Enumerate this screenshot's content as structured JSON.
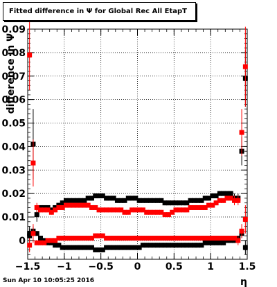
{
  "title": "Fitted difference in  Ψ  for Global Rec All EtapT",
  "footer": {
    "date": "Sun Apr 10 10:05:25 2016"
  },
  "chart_data": {
    "type": "scatter",
    "title": "Fitted difference in  Ψ  for Global Rec All EtapT",
    "xlabel": "η",
    "ylabel": "difference in Ψ",
    "xlim": [
      -1.5,
      1.5
    ],
    "ylim": [
      -0.008,
      0.09
    ],
    "xticks": [
      -1.5,
      -1,
      -0.5,
      0,
      0.5,
      1,
      1.5
    ],
    "xtick_labels": [
      "−1.5",
      "−1",
      "−0.5",
      "0",
      "0.5",
      "1",
      "1.5"
    ],
    "yticks": [
      0,
      0.01,
      0.02,
      0.03,
      0.04,
      0.05,
      0.06,
      0.07,
      0.08,
      0.09
    ],
    "ytick_labels": [
      "0",
      "0.01",
      "0.02",
      "0.03",
      "0.04",
      "0.05",
      "0.06",
      "0.07",
      "0.08",
      "0.09"
    ],
    "grid": true,
    "legend": "none",
    "colors": {
      "series1": "#000000",
      "series2": "#ff0000"
    },
    "series": [
      {
        "color": "#000000",
        "x": [
          -1.475,
          -1.425,
          -1.375,
          -1.325,
          -1.275,
          -1.225,
          -1.175,
          -1.125,
          -1.075,
          -1.025,
          -0.975,
          -0.925,
          -0.875,
          -0.825,
          -0.775,
          -0.725,
          -0.675,
          -0.625,
          -0.575,
          -0.525,
          -0.475,
          -0.425,
          -0.375,
          -0.325,
          -0.275,
          -0.225,
          -0.175,
          -0.125,
          -0.075,
          -0.025,
          0.025,
          0.075,
          0.125,
          0.175,
          0.225,
          0.275,
          0.325,
          0.375,
          0.425,
          0.475,
          0.525,
          0.575,
          0.625,
          0.675,
          0.725,
          0.775,
          0.825,
          0.875,
          0.925,
          0.975,
          1.025,
          1.075,
          1.125,
          1.175,
          1.225,
          1.275,
          1.325,
          1.375,
          1.425,
          1.475
        ],
        "y": [
          0.002,
          0.041,
          0.011,
          0.014,
          0.014,
          0.014,
          0.013,
          0.014,
          0.015,
          0.016,
          0.017,
          0.017,
          0.017,
          0.017,
          0.017,
          0.017,
          0.018,
          0.018,
          0.019,
          0.019,
          0.019,
          0.018,
          0.018,
          0.018,
          0.017,
          0.017,
          0.017,
          0.018,
          0.018,
          0.018,
          0.017,
          0.017,
          0.017,
          0.017,
          0.017,
          0.017,
          0.017,
          0.016,
          0.016,
          0.016,
          0.016,
          0.016,
          0.016,
          0.016,
          0.017,
          0.017,
          0.017,
          0.017,
          0.018,
          0.018,
          0.019,
          0.019,
          0.02,
          0.02,
          0.02,
          0.02,
          0.018,
          0.018,
          0.038,
          0.069
        ],
        "err": [
          0.004,
          0.015,
          0.003,
          0.001,
          0.001,
          0.001,
          0.001,
          0.001,
          0.001,
          0.001,
          0.001,
          0.001,
          0.001,
          0.001,
          0.001,
          0.001,
          0.001,
          0.001,
          0.001,
          0.001,
          0.001,
          0.001,
          0.001,
          0.001,
          0.001,
          0.001,
          0.001,
          0.001,
          0.001,
          0.001,
          0.001,
          0.001,
          0.001,
          0.001,
          0.001,
          0.001,
          0.001,
          0.001,
          0.001,
          0.001,
          0.001,
          0.001,
          0.001,
          0.001,
          0.001,
          0.001,
          0.001,
          0.001,
          0.001,
          0.001,
          0.001,
          0.001,
          0.001,
          0.001,
          0.001,
          0.001,
          0.002,
          0.002,
          0.006,
          0.012
        ]
      },
      {
        "color": "#000000",
        "x": [
          -1.475,
          -1.425,
          -1.375,
          -1.325,
          -1.275,
          -1.225,
          -1.175,
          -1.125,
          -1.075,
          -1.025,
          -0.975,
          -0.925,
          -0.875,
          -0.825,
          -0.775,
          -0.725,
          -0.675,
          -0.625,
          -0.575,
          -0.525,
          -0.475,
          -0.425,
          -0.375,
          -0.325,
          -0.275,
          -0.225,
          -0.175,
          -0.125,
          -0.075,
          -0.025,
          0.025,
          0.075,
          0.125,
          0.175,
          0.225,
          0.275,
          0.325,
          0.375,
          0.425,
          0.475,
          0.525,
          0.575,
          0.625,
          0.675,
          0.725,
          0.775,
          0.825,
          0.875,
          0.925,
          0.975,
          1.025,
          1.075,
          1.125,
          1.175,
          1.225,
          1.275,
          1.325,
          1.375,
          1.425,
          1.475
        ],
        "y": [
          0.003,
          0.004,
          0.003,
          0.001,
          0.0,
          -0.001,
          -0.001,
          -0.002,
          -0.002,
          -0.003,
          -0.003,
          -0.003,
          -0.003,
          -0.003,
          -0.003,
          -0.003,
          -0.003,
          -0.003,
          -0.004,
          -0.004,
          -0.004,
          -0.003,
          -0.003,
          -0.003,
          -0.003,
          -0.003,
          -0.003,
          -0.003,
          -0.003,
          -0.003,
          -0.003,
          -0.002,
          -0.002,
          -0.002,
          -0.002,
          -0.002,
          -0.002,
          -0.002,
          -0.002,
          -0.002,
          -0.002,
          -0.002,
          -0.002,
          -0.002,
          -0.002,
          -0.002,
          -0.002,
          -0.002,
          -0.001,
          -0.001,
          -0.001,
          -0.001,
          -0.001,
          -0.001,
          0.0,
          0.0,
          0.0,
          0.001,
          0.003,
          -0.003
        ],
        "err": [
          0.002,
          0.002,
          0.001,
          0.001,
          0.001,
          0.001,
          0.001,
          0.001,
          0.001,
          0.001,
          0.001,
          0.001,
          0.001,
          0.001,
          0.001,
          0.001,
          0.001,
          0.001,
          0.001,
          0.001,
          0.001,
          0.001,
          0.001,
          0.001,
          0.001,
          0.001,
          0.001,
          0.001,
          0.001,
          0.001,
          0.001,
          0.001,
          0.001,
          0.001,
          0.001,
          0.001,
          0.001,
          0.001,
          0.001,
          0.001,
          0.001,
          0.001,
          0.001,
          0.001,
          0.001,
          0.001,
          0.001,
          0.001,
          0.001,
          0.001,
          0.001,
          0.001,
          0.001,
          0.001,
          0.001,
          0.001,
          0.001,
          0.001,
          0.002,
          0.003
        ]
      },
      {
        "color": "#ff0000",
        "x": [
          -1.475,
          -1.425,
          -1.375,
          -1.325,
          -1.275,
          -1.225,
          -1.175,
          -1.125,
          -1.075,
          -1.025,
          -0.975,
          -0.925,
          -0.875,
          -0.825,
          -0.775,
          -0.725,
          -0.675,
          -0.625,
          -0.575,
          -0.525,
          -0.475,
          -0.425,
          -0.375,
          -0.325,
          -0.275,
          -0.225,
          -0.175,
          -0.125,
          -0.075,
          -0.025,
          0.025,
          0.075,
          0.125,
          0.175,
          0.225,
          0.275,
          0.325,
          0.375,
          0.425,
          0.475,
          0.525,
          0.575,
          0.625,
          0.675,
          0.725,
          0.775,
          0.825,
          0.875,
          0.925,
          0.975,
          1.025,
          1.075,
          1.125,
          1.175,
          1.225,
          1.275,
          1.325,
          1.375,
          1.425,
          1.475
        ],
        "y": [
          0.079,
          0.033,
          0.014,
          0.013,
          0.013,
          0.013,
          0.012,
          0.013,
          0.014,
          0.014,
          0.015,
          0.015,
          0.015,
          0.015,
          0.015,
          0.015,
          0.015,
          0.014,
          0.014,
          0.013,
          0.013,
          0.013,
          0.013,
          0.013,
          0.013,
          0.013,
          0.012,
          0.012,
          0.013,
          0.013,
          0.013,
          0.013,
          0.012,
          0.012,
          0.012,
          0.012,
          0.012,
          0.011,
          0.011,
          0.012,
          0.013,
          0.013,
          0.013,
          0.013,
          0.014,
          0.014,
          0.014,
          0.014,
          0.014,
          0.015,
          0.015,
          0.016,
          0.017,
          0.017,
          0.018,
          0.018,
          0.017,
          0.017,
          0.046,
          0.074
        ],
        "err": [
          0.015,
          0.01,
          0.002,
          0.001,
          0.001,
          0.001,
          0.001,
          0.001,
          0.001,
          0.001,
          0.001,
          0.001,
          0.001,
          0.001,
          0.001,
          0.001,
          0.001,
          0.001,
          0.001,
          0.001,
          0.001,
          0.001,
          0.001,
          0.001,
          0.001,
          0.001,
          0.001,
          0.001,
          0.001,
          0.001,
          0.001,
          0.001,
          0.001,
          0.001,
          0.001,
          0.001,
          0.001,
          0.001,
          0.001,
          0.001,
          0.001,
          0.001,
          0.001,
          0.001,
          0.001,
          0.001,
          0.001,
          0.001,
          0.001,
          0.001,
          0.001,
          0.001,
          0.001,
          0.001,
          0.001,
          0.001,
          0.002,
          0.002,
          0.01,
          0.017
        ]
      },
      {
        "color": "#ff0000",
        "x": [
          -1.475,
          -1.425,
          -1.375,
          -1.325,
          -1.275,
          -1.225,
          -1.175,
          -1.125,
          -1.075,
          -1.025,
          -0.975,
          -0.925,
          -0.875,
          -0.825,
          -0.775,
          -0.725,
          -0.675,
          -0.625,
          -0.575,
          -0.525,
          -0.475,
          -0.425,
          -0.375,
          -0.325,
          -0.275,
          -0.225,
          -0.175,
          -0.125,
          -0.075,
          -0.025,
          0.025,
          0.075,
          0.125,
          0.175,
          0.225,
          0.275,
          0.325,
          0.375,
          0.425,
          0.475,
          0.525,
          0.575,
          0.625,
          0.675,
          0.725,
          0.775,
          0.825,
          0.875,
          0.925,
          0.975,
          1.025,
          1.075,
          1.125,
          1.175,
          1.225,
          1.275,
          1.325,
          1.375,
          1.425,
          1.475
        ],
        "y": [
          -0.002,
          0.003,
          -0.001,
          -0.001,
          -0.001,
          0.0,
          0.0,
          0.0,
          0.001,
          0.001,
          0.001,
          0.001,
          0.001,
          0.001,
          0.001,
          0.001,
          0.001,
          0.001,
          0.002,
          0.002,
          0.002,
          0.001,
          0.001,
          0.001,
          0.001,
          0.001,
          0.001,
          0.001,
          0.001,
          0.001,
          0.001,
          0.001,
          0.001,
          0.001,
          0.001,
          0.001,
          0.001,
          0.001,
          0.001,
          0.001,
          0.001,
          0.001,
          0.001,
          0.001,
          0.001,
          0.001,
          0.001,
          0.001,
          0.001,
          0.001,
          0.001,
          0.001,
          0.001,
          0.001,
          0.001,
          0.001,
          0.001,
          0.0,
          0.004,
          0.009
        ],
        "err": [
          0.003,
          0.004,
          0.001,
          0.001,
          0.001,
          0.001,
          0.001,
          0.001,
          0.001,
          0.001,
          0.001,
          0.001,
          0.001,
          0.001,
          0.001,
          0.001,
          0.001,
          0.001,
          0.001,
          0.001,
          0.001,
          0.001,
          0.001,
          0.001,
          0.001,
          0.001,
          0.001,
          0.001,
          0.001,
          0.001,
          0.001,
          0.001,
          0.001,
          0.001,
          0.001,
          0.001,
          0.001,
          0.001,
          0.001,
          0.001,
          0.001,
          0.001,
          0.001,
          0.001,
          0.001,
          0.001,
          0.001,
          0.001,
          0.001,
          0.001,
          0.001,
          0.001,
          0.001,
          0.001,
          0.001,
          0.001,
          0.001,
          0.002,
          0.003,
          0.006
        ]
      }
    ]
  }
}
